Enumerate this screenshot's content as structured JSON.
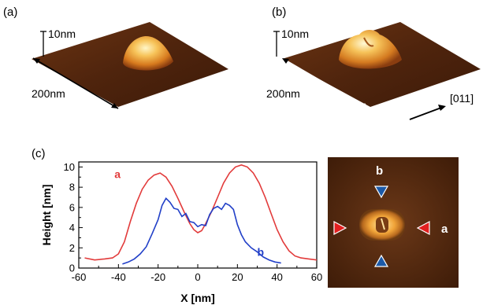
{
  "panels": {
    "a": {
      "label": "(a)",
      "scale_z": "10nm",
      "scale_xy": "200nm"
    },
    "b": {
      "label": "(b)",
      "scale_z": "10nm",
      "scale_xy": "200nm",
      "direction": "[011]"
    },
    "c": {
      "label": "(c)"
    }
  },
  "chart_data": {
    "type": "line",
    "xlabel": "X [nm]",
    "ylabel": "Height [nm]",
    "xlim": [
      -60,
      60
    ],
    "ylim": [
      0,
      10.5
    ],
    "xticks": [
      "-60",
      "-40",
      "-20",
      "0",
      "20",
      "40",
      "60"
    ],
    "yticks": [
      "0",
      "2",
      "4",
      "6",
      "8",
      "10"
    ],
    "series": [
      {
        "name": "a",
        "color": "#e23b3b",
        "points": [
          [
            -57,
            1.0
          ],
          [
            -52,
            0.8
          ],
          [
            -47,
            0.9
          ],
          [
            -43,
            1.0
          ],
          [
            -40,
            1.4
          ],
          [
            -37,
            2.6
          ],
          [
            -34,
            4.6
          ],
          [
            -31,
            6.4
          ],
          [
            -28,
            7.8
          ],
          [
            -25,
            8.7
          ],
          [
            -22,
            9.2
          ],
          [
            -19,
            9.4
          ],
          [
            -16,
            9.0
          ],
          [
            -13,
            8.1
          ],
          [
            -10,
            6.9
          ],
          [
            -7,
            5.6
          ],
          [
            -4,
            4.4
          ],
          [
            -2,
            3.8
          ],
          [
            0,
            3.5
          ],
          [
            2,
            3.7
          ],
          [
            4,
            4.4
          ],
          [
            7,
            5.6
          ],
          [
            10,
            7.0
          ],
          [
            13,
            8.4
          ],
          [
            16,
            9.4
          ],
          [
            19,
            10.0
          ],
          [
            22,
            10.2
          ],
          [
            25,
            10.0
          ],
          [
            28,
            9.4
          ],
          [
            31,
            8.4
          ],
          [
            34,
            7.0
          ],
          [
            37,
            5.4
          ],
          [
            40,
            3.8
          ],
          [
            43,
            2.6
          ],
          [
            46,
            1.7
          ],
          [
            49,
            1.2
          ],
          [
            52,
            1.0
          ],
          [
            56,
            0.9
          ],
          [
            60,
            0.8
          ]
        ]
      },
      {
        "name": "b",
        "color": "#2240c8",
        "points": [
          [
            -38,
            0.4
          ],
          [
            -35,
            0.6
          ],
          [
            -32,
            0.9
          ],
          [
            -29,
            1.4
          ],
          [
            -26,
            2.1
          ],
          [
            -23,
            3.4
          ],
          [
            -20,
            4.8
          ],
          [
            -18,
            6.2
          ],
          [
            -16,
            6.9
          ],
          [
            -14,
            6.5
          ],
          [
            -12,
            5.9
          ],
          [
            -10,
            5.8
          ],
          [
            -8,
            5.1
          ],
          [
            -6,
            5.4
          ],
          [
            -4,
            4.6
          ],
          [
            -2,
            4.5
          ],
          [
            0,
            4.1
          ],
          [
            2,
            4.3
          ],
          [
            4,
            4.2
          ],
          [
            6,
            5.3
          ],
          [
            8,
            5.9
          ],
          [
            10,
            6.1
          ],
          [
            12,
            5.8
          ],
          [
            14,
            6.4
          ],
          [
            16,
            6.2
          ],
          [
            18,
            5.8
          ],
          [
            20,
            4.3
          ],
          [
            22,
            3.3
          ],
          [
            24,
            2.6
          ],
          [
            27,
            2.0
          ],
          [
            30,
            1.6
          ],
          [
            33,
            1.1
          ],
          [
            36,
            0.8
          ],
          [
            39,
            0.6
          ],
          [
            42,
            0.5
          ]
        ]
      }
    ],
    "annotations": [
      {
        "text": "a",
        "color": "#e23b3b"
      },
      {
        "text": "b",
        "color": "#2240c8"
      }
    ]
  },
  "inset": {
    "label_a": "a",
    "label_b": "b",
    "arrow_red": "#e21f1f",
    "arrow_blue": "#1c5aa8"
  }
}
